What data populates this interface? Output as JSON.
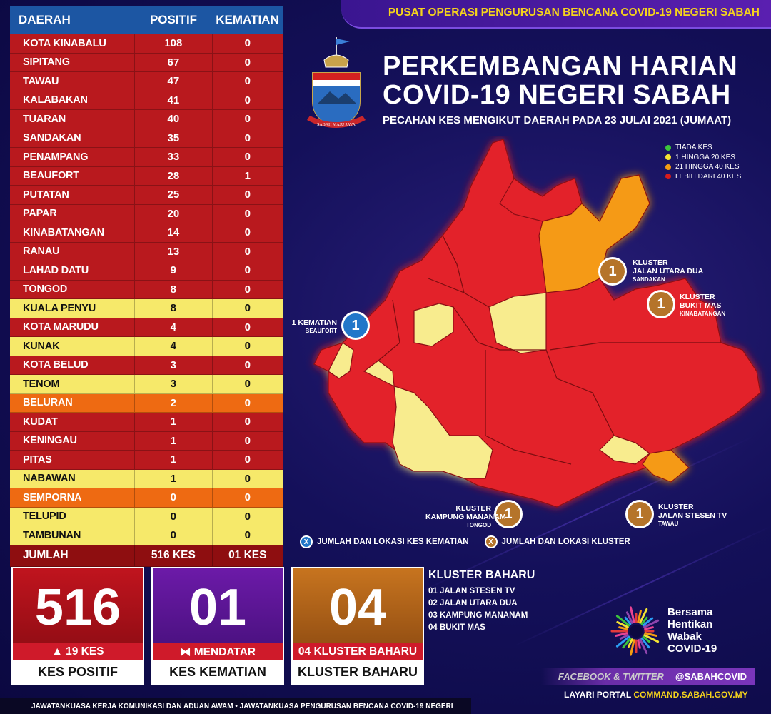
{
  "header": {
    "org": "PUSAT OPERASI PENGURUSAN BENCANA COVID-19 NEGERI SABAH",
    "title_line1": "PERKEMBANGAN HARIAN",
    "title_line2": "COVID-19 NEGERI SABAH",
    "subtitle": "PECAHAN KES MENGIKUT DAERAH PADA 23 JULAI 2021 (JUMAAT)",
    "crest_motto": "SABAH MAJU JAYA"
  },
  "table": {
    "col_daerah": "DAERAH",
    "col_positif": "POSITIF",
    "col_kematian": "KEMATIAN",
    "rows": [
      {
        "daerah": "KOTA KINABALU",
        "positif": "108",
        "kematian": "0",
        "level": "red"
      },
      {
        "daerah": "SIPITANG",
        "positif": "67",
        "kematian": "0",
        "level": "red"
      },
      {
        "daerah": "TAWAU",
        "positif": "47",
        "kematian": "0",
        "level": "red"
      },
      {
        "daerah": "KALABAKAN",
        "positif": "41",
        "kematian": "0",
        "level": "red"
      },
      {
        "daerah": "TUARAN",
        "positif": "40",
        "kematian": "0",
        "level": "red"
      },
      {
        "daerah": "SANDAKAN",
        "positif": "35",
        "kematian": "0",
        "level": "red"
      },
      {
        "daerah": "PENAMPANG",
        "positif": "33",
        "kematian": "0",
        "level": "red"
      },
      {
        "daerah": "BEAUFORT",
        "positif": "28",
        "kematian": "1",
        "level": "red"
      },
      {
        "daerah": "PUTATAN",
        "positif": "25",
        "kematian": "0",
        "level": "red"
      },
      {
        "daerah": "PAPAR",
        "positif": "20",
        "kematian": "0",
        "level": "red"
      },
      {
        "daerah": "KINABATANGAN",
        "positif": "14",
        "kematian": "0",
        "level": "red"
      },
      {
        "daerah": "RANAU",
        "positif": "13",
        "kematian": "0",
        "level": "red"
      },
      {
        "daerah": "LAHAD DATU",
        "positif": "9",
        "kematian": "0",
        "level": "red"
      },
      {
        "daerah": "TONGOD",
        "positif": "8",
        "kematian": "0",
        "level": "red"
      },
      {
        "daerah": "KUALA PENYU",
        "positif": "8",
        "kematian": "0",
        "level": "yellow"
      },
      {
        "daerah": "KOTA MARUDU",
        "positif": "4",
        "kematian": "0",
        "level": "red"
      },
      {
        "daerah": "KUNAK",
        "positif": "4",
        "kematian": "0",
        "level": "yellow"
      },
      {
        "daerah": "KOTA BELUD",
        "positif": "3",
        "kematian": "0",
        "level": "red"
      },
      {
        "daerah": "TENOM",
        "positif": "3",
        "kematian": "0",
        "level": "yellow"
      },
      {
        "daerah": "BELURAN",
        "positif": "2",
        "kematian": "0",
        "level": "orange"
      },
      {
        "daerah": "KUDAT",
        "positif": "1",
        "kematian": "0",
        "level": "red"
      },
      {
        "daerah": "KENINGAU",
        "positif": "1",
        "kematian": "0",
        "level": "red"
      },
      {
        "daerah": "PITAS",
        "positif": "1",
        "kematian": "0",
        "level": "red"
      },
      {
        "daerah": "NABAWAN",
        "positif": "1",
        "kematian": "0",
        "level": "yellow"
      },
      {
        "daerah": "SEMPORNA",
        "positif": "0",
        "kematian": "0",
        "level": "orange"
      },
      {
        "daerah": "TELUPID",
        "positif": "0",
        "kematian": "0",
        "level": "yellow"
      },
      {
        "daerah": "TAMBUNAN",
        "positif": "0",
        "kematian": "0",
        "level": "yellow"
      }
    ],
    "total_label": "JUMLAH",
    "total_positif": "516 KES",
    "total_kematian": "01 KES"
  },
  "legend": {
    "items": [
      {
        "label": "TIADA KES",
        "color": "#3cc43c"
      },
      {
        "label": "1 HINGGA 20 KES",
        "color": "#f3e233"
      },
      {
        "label": "21 HINGGA 40 KES",
        "color": "#f39c12"
      },
      {
        "label": "LEBIH DARI 40 KES",
        "color": "#d81b1b"
      }
    ]
  },
  "markers": {
    "beaufort": {
      "count": "1",
      "line1": "1 KEMATIAN",
      "line2": "BEAUFORT"
    },
    "sandakan": {
      "count": "1",
      "line1": "KLUSTER",
      "line2": "JALAN UTARA DUA",
      "line3": "SANDAKAN"
    },
    "kinabatangan": {
      "count": "1",
      "line1": "KLUSTER",
      "line2": "BUKIT MAS",
      "line3": "KINABATANGAN"
    },
    "tongod": {
      "count": "1",
      "line1": "KLUSTER",
      "line2": "KAMPUNG MANANAM",
      "line3": "TONGOD"
    },
    "tawau": {
      "count": "1",
      "line1": "KLUSTER",
      "line2": "JALAN STESEN TV",
      "line3": "TAWAU"
    }
  },
  "keys": {
    "death_icon": "X",
    "death_label": "JUMLAH DAN LOKASI KES KEMATIAN",
    "cluster_icon": "X",
    "cluster_label": "JUMLAH DAN LOKASI KLUSTER"
  },
  "cards": {
    "positif": {
      "value": "516",
      "delta": "▲ 19 KES",
      "label": "KES POSITIF",
      "color": "#c0141e"
    },
    "kematian": {
      "value": "01",
      "delta": "⧓ MENDATAR",
      "label": "KES KEMATIAN",
      "color": "#6c1aa8"
    },
    "kluster": {
      "value": "04",
      "delta": "04 KLUSTER BAHARU",
      "label": "KLUSTER BAHARU",
      "color": "#b8661a"
    }
  },
  "kluster_baharu": {
    "heading": "KLUSTER BAHARU",
    "items": [
      "01  JALAN STESEN TV",
      "02  JALAN UTARA DUA",
      "03  KAMPUNG MANANAM",
      "04  BUKIT MAS"
    ]
  },
  "campaign": {
    "line1": "Bersama",
    "line2": "Hentikan",
    "line3": "Wabak",
    "line4": "COVID-19"
  },
  "social": {
    "platforms": "FACEBOOK & TWITTER",
    "handle": "@SABAHCOVID"
  },
  "portal": {
    "prefix": "LAYARI PORTAL ",
    "url": "COMMAND.SABAH.GOV.MY"
  },
  "footer": "JAWATANKUASA KERJA KOMUNIKASI DAN ADUAN AWAM • JAWATANKUASA PENGURUSAN BENCANA COVID-19 NEGERI"
}
